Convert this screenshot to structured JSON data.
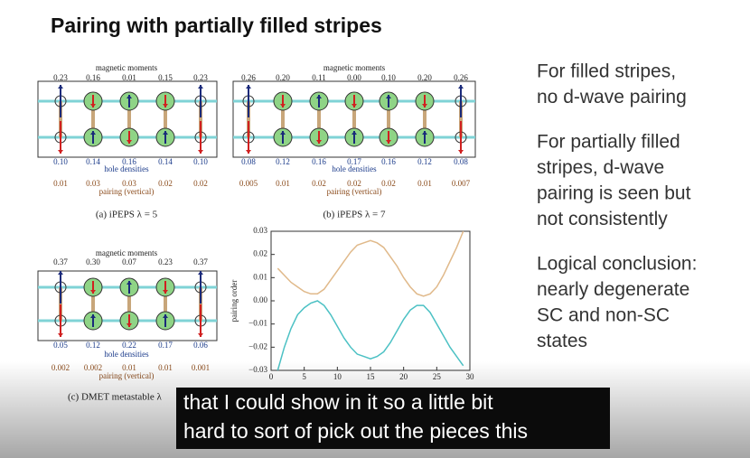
{
  "title": "Pairing with partially filled stripes",
  "panels": [
    {
      "moments_label": "magnetic moments",
      "moments": [
        "0.23",
        "0.16",
        "0.01",
        "0.15",
        "0.23"
      ],
      "holes_label": "hole densities",
      "holes": [
        "0.10",
        "0.14",
        "0.16",
        "0.14",
        "0.10"
      ],
      "pairing_label": "pairing (vertical)",
      "pairing": [
        "0.01",
        "0.03",
        "0.03",
        "0.02",
        "0.02"
      ],
      "caption": "(a) iPEPS λ = 5"
    },
    {
      "moments_label": "magnetic moments",
      "moments": [
        "0.26",
        "0.20",
        "0.11",
        "0.00",
        "0.10",
        "0.20",
        "0.26"
      ],
      "holes_label": "hole densities",
      "holes": [
        "0.08",
        "0.12",
        "0.16",
        "0.17",
        "0.16",
        "0.12",
        "0.08"
      ],
      "pairing_label": "pairing (vertical)",
      "pairing": [
        "0.005",
        "0.01",
        "0.02",
        "0.02",
        "0.02",
        "0.01",
        "0.007"
      ],
      "caption": "(b) iPEPS λ = 7"
    },
    {
      "moments_label": "magnetic moments",
      "moments": [
        "0.37",
        "0.30",
        "0.07",
        "0.23",
        "0.37"
      ],
      "holes_label": "hole densities",
      "holes": [
        "0.05",
        "0.12",
        "0.22",
        "0.17",
        "0.06"
      ],
      "pairing_label": "pairing (vertical)",
      "pairing": [
        "0.002",
        "0.002",
        "0.01",
        "0.01",
        "0.001"
      ],
      "caption": "(c) DMET metastable λ"
    }
  ],
  "chart": {
    "type": "line",
    "ylabel": "pairing order",
    "x": [
      1,
      2,
      3,
      4,
      5,
      6,
      7,
      8,
      9,
      10,
      11,
      12,
      13,
      14,
      15,
      16,
      17,
      18,
      19,
      20,
      21,
      22,
      23,
      24,
      25,
      26,
      27,
      28,
      29
    ],
    "xlim": [
      0,
      30
    ],
    "xticks": [
      0,
      5,
      10,
      15,
      20,
      25,
      30
    ],
    "ylim": [
      -0.03,
      0.03
    ],
    "yticks": [
      {
        "value": -0.03,
        "label": "−0.03"
      },
      {
        "value": -0.02,
        "label": "−0.02"
      },
      {
        "value": -0.01,
        "label": "−0.01"
      },
      {
        "value": 0,
        "label": "0.00"
      },
      0.01,
      0.02,
      0.03
    ],
    "series": [
      {
        "color": "#e0b98a",
        "values": [
          0.014,
          0.011,
          0.008,
          0.006,
          0.004,
          0.003,
          0.003,
          0.005,
          0.009,
          0.013,
          0.017,
          0.021,
          0.024,
          0.025,
          0.026,
          0.025,
          0.023,
          0.019,
          0.015,
          0.01,
          0.006,
          0.003,
          0.002,
          0.003,
          0.006,
          0.011,
          0.017,
          0.023,
          0.03
        ]
      },
      {
        "color": "#4cc1c4",
        "values": [
          -0.03,
          -0.02,
          -0.012,
          -0.006,
          -0.003,
          -0.001,
          0,
          -0.002,
          -0.006,
          -0.011,
          -0.016,
          -0.02,
          -0.023,
          -0.024,
          -0.025,
          -0.024,
          -0.022,
          -0.018,
          -0.013,
          -0.008,
          -0.004,
          -0.002,
          -0.002,
          -0.005,
          -0.01,
          -0.015,
          -0.02,
          -0.024,
          -0.028
        ]
      }
    ]
  },
  "side_text": [
    [
      "For filled stripes,",
      "no d-wave pairing"
    ],
    [
      "For partially filled",
      "stripes, d-wave",
      "pairing is seen but",
      "not consistently"
    ],
    [
      "Logical conclusion:",
      "nearly degenerate",
      "SC and non-SC",
      "states"
    ]
  ],
  "captions": [
    "that I could show in it so a little bit",
    "hard to sort of pick out the pieces this"
  ]
}
